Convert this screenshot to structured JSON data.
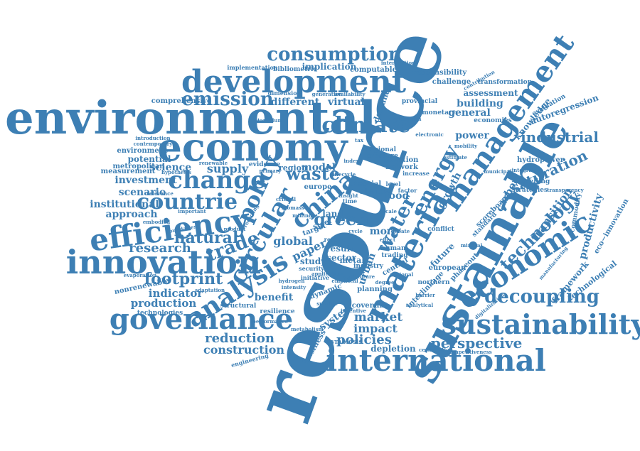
{
  "color": "#3d7fb4",
  "words": [
    {
      "id": "resource",
      "text": "resource"
    },
    {
      "id": "environmental",
      "text": "environmental"
    },
    {
      "id": "sustainable",
      "text": "sustainable"
    },
    {
      "id": "economy",
      "text": "economy"
    },
    {
      "id": "innovation",
      "text": "innovation"
    },
    {
      "id": "development",
      "text": "development"
    },
    {
      "id": "international",
      "text": "international"
    },
    {
      "id": "sustainability",
      "text": "sustainability"
    },
    {
      "id": "governance",
      "text": "governance"
    },
    {
      "id": "efficiency",
      "text": "efficiency"
    },
    {
      "id": "material",
      "text": "material"
    },
    {
      "id": "economic",
      "text": "economic"
    },
    {
      "id": "management",
      "text": "management"
    },
    {
      "id": "consumption",
      "text": "consumption"
    },
    {
      "id": "china",
      "text": "china"
    },
    {
      "id": "analysis",
      "text": "analysis"
    },
    {
      "id": "circular",
      "text": "circular"
    },
    {
      "id": "change",
      "text": "change"
    },
    {
      "id": "countrie",
      "text": "countrie"
    },
    {
      "id": "climate",
      "text": "climate"
    },
    {
      "id": "policy",
      "text": "policy"
    },
    {
      "id": "energy",
      "text": "energy"
    },
    {
      "id": "water",
      "text": "water"
    },
    {
      "id": "technology",
      "text": "technology"
    },
    {
      "id": "emission",
      "text": "emission"
    },
    {
      "id": "trade",
      "text": "trade"
    },
    {
      "id": "decoupling",
      "text": "decoupling"
    },
    {
      "id": "footprint",
      "text": "footprint"
    },
    {
      "id": "green",
      "text": "green"
    },
    {
      "id": "waste",
      "text": "waste"
    },
    {
      "id": "saturation",
      "text": "saturation"
    },
    {
      "id": "industrial",
      "text": "industrial"
    },
    {
      "id": "natural",
      "text": "natural"
    },
    {
      "id": "research",
      "text": "research"
    },
    {
      "id": "reduction",
      "text": "reduction"
    },
    {
      "id": "construction",
      "text": "construction"
    },
    {
      "id": "perspective",
      "text": "perspective"
    },
    {
      "id": "policies",
      "text": "policies"
    },
    {
      "id": "impact",
      "text": "impact"
    },
    {
      "id": "market",
      "text": "market"
    },
    {
      "id": "production",
      "text": "production"
    },
    {
      "id": "indicator",
      "text": "indicator"
    },
    {
      "id": "technologies",
      "text": "technologies"
    },
    {
      "id": "investment",
      "text": "investment"
    },
    {
      "id": "scenario",
      "text": "scenario"
    },
    {
      "id": "institutional",
      "text": "institutional"
    },
    {
      "id": "approach",
      "text": "approach"
    },
    {
      "id": "science",
      "text": "science"
    },
    {
      "id": "potential",
      "text": "potential"
    },
    {
      "id": "supply",
      "text": "supply"
    },
    {
      "id": "measurement",
      "text": "measurement"
    },
    {
      "id": "metropolitan",
      "text": "metropolitan"
    },
    {
      "id": "environment",
      "text": "environment"
    },
    {
      "id": "comprehensive",
      "text": "comprehensive"
    },
    {
      "id": "different",
      "text": "different"
    },
    {
      "id": "virtual",
      "text": "virtual"
    },
    {
      "id": "implication",
      "text": "implication"
    },
    {
      "id": "computable",
      "text": "computable"
    },
    {
      "id": "bibliometric",
      "text": "bibliometric"
    },
    {
      "id": "implementation",
      "text": "implementation"
    },
    {
      "id": "responsibility",
      "text": "responsibility"
    },
    {
      "id": "challenge",
      "text": "challenge"
    },
    {
      "id": "transformation",
      "text": "transformation"
    },
    {
      "id": "assessment",
      "text": "assessment"
    },
    {
      "id": "building",
      "text": "building"
    },
    {
      "id": "general",
      "text": "general"
    },
    {
      "id": "power",
      "text": "power"
    },
    {
      "id": "economies",
      "text": "economies"
    },
    {
      "id": "monetary",
      "text": "monetary"
    },
    {
      "id": "knowledge",
      "text": "knowledge"
    },
    {
      "id": "autoregression",
      "text": "autoregression"
    },
    {
      "id": "evaluation",
      "text": "evaluation"
    },
    {
      "id": "carbon",
      "text": "carbon"
    },
    {
      "id": "hydropower",
      "text": "hydropower"
    },
    {
      "id": "growth",
      "text": "growth"
    },
    {
      "id": "modelling",
      "text": "modelling"
    },
    {
      "id": "strategies",
      "text": "strategies"
    },
    {
      "id": "transition",
      "text": "transition"
    },
    {
      "id": "productivity",
      "text": "productivity"
    },
    {
      "id": "commodity",
      "text": "commodity"
    },
    {
      "id": "eco-innovation",
      "text": "eco−innovation"
    },
    {
      "id": "framework",
      "text": "framework"
    },
    {
      "id": "technological",
      "text": "technological"
    },
    {
      "id": "scoreboard",
      "text": "scoreboard"
    },
    {
      "id": "standard",
      "text": "standard"
    },
    {
      "id": "future",
      "text": "future"
    },
    {
      "id": "conflict",
      "text": "conflict"
    },
    {
      "id": "phaseout",
      "text": "phaseout"
    },
    {
      "id": "european",
      "text": "european"
    },
    {
      "id": "northern",
      "text": "northern"
    },
    {
      "id": "interlinkage",
      "text": "interlinkage"
    },
    {
      "id": "covenant",
      "text": "covenant"
    },
    {
      "id": "planning",
      "text": "planning"
    },
    {
      "id": "central",
      "text": "central"
    },
    {
      "id": "industry",
      "text": "industry"
    },
    {
      "id": "metal",
      "text": "metal"
    },
    {
      "id": "result",
      "text": "result"
    },
    {
      "id": "sector",
      "text": "sector"
    },
    {
      "id": "more",
      "text": "more"
    },
    {
      "id": "urban",
      "text": "urban"
    },
    {
      "id": "human",
      "text": "human"
    },
    {
      "id": "trading",
      "text": "trading"
    },
    {
      "id": "depletion",
      "text": "depletion"
    },
    {
      "id": "system",
      "text": "system"
    },
    {
      "id": "business",
      "text": "business"
    },
    {
      "id": "symbiosis",
      "text": "symbiosis"
    },
    {
      "id": "benefit",
      "text": "benefit"
    },
    {
      "id": "structural",
      "text": "structural"
    },
    {
      "id": "resilience",
      "text": "resilience"
    },
    {
      "id": "dynamic",
      "text": "dynamic"
    },
    {
      "id": "initiative",
      "text": "initiative"
    },
    {
      "id": "study",
      "text": "study"
    },
    {
      "id": "security",
      "text": "security"
    },
    {
      "id": "paper",
      "text": "paper"
    },
    {
      "id": "global",
      "text": "global"
    },
    {
      "id": "land",
      "text": "land"
    },
    {
      "id": "steel",
      "text": "steel"
    },
    {
      "id": "target",
      "text": "target"
    },
    {
      "id": "chain",
      "text": "chain"
    },
    {
      "id": "social",
      "text": "social"
    },
    {
      "id": "food",
      "text": "food"
    },
    {
      "id": "factor",
      "text": "factor"
    },
    {
      "id": "region",
      "text": "region"
    },
    {
      "id": "model",
      "text": "model"
    },
    {
      "id": "europe",
      "text": "europe"
    },
    {
      "id": "pollution",
      "text": "pollution"
    },
    {
      "id": "network",
      "text": "network"
    },
    {
      "id": "increase",
      "text": "increase"
    },
    {
      "id": "regional",
      "text": "regional"
    },
    {
      "id": "pressure",
      "text": "pressure"
    },
    {
      "id": "demand",
      "text": "demand"
    },
    {
      "id": "provincial",
      "text": "provincial"
    },
    {
      "id": "evidence",
      "text": "evidence"
    },
    {
      "id": "hypothesis",
      "text": "hypothesis"
    },
    {
      "id": "relevance",
      "text": "relevance"
    },
    {
      "id": "important",
      "text": "important"
    },
    {
      "id": "embodied",
      "text": "embodied"
    },
    {
      "id": "nonrenewable",
      "text": "nonrenewable"
    },
    {
      "id": "evaporation",
      "text": "evaporation"
    },
    {
      "id": "introduction",
      "text": "introduction"
    },
    {
      "id": "contemporary",
      "text": "contemporary"
    },
    {
      "id": "tantalum",
      "text": "tantalum"
    },
    {
      "id": "dimension",
      "text": "dimension"
    },
    {
      "id": "level",
      "text": "level"
    },
    {
      "id": "recent",
      "text": "recent"
    },
    {
      "id": "engineering",
      "text": "engineering"
    },
    {
      "id": "certification",
      "text": "certification"
    },
    {
      "id": "competitiveness",
      "text": "competitiveness"
    },
    {
      "id": "mobility",
      "text": "mobility"
    },
    {
      "id": "electronic",
      "text": "electronic"
    },
    {
      "id": "allocation",
      "text": "allocation"
    },
    {
      "id": "intervention",
      "text": "intervention"
    },
    {
      "id": "contribution",
      "text": "contribution"
    },
    {
      "id": "generation",
      "text": "generation"
    },
    {
      "id": "availability",
      "text": "availability"
    },
    {
      "id": "metabolism",
      "text": "metabolism"
    },
    {
      "id": "adaptation",
      "text": "adaptation"
    },
    {
      "id": "boundaries",
      "text": "boundaries"
    },
    {
      "id": "transparency",
      "text": "transparency"
    },
    {
      "id": "integrated",
      "text": "integrated"
    },
    {
      "id": "manufacturing",
      "text": "manufacturing"
    },
    {
      "id": "mineral",
      "text": "mineral"
    },
    {
      "id": "digitalization",
      "text": "digitalization"
    },
    {
      "id": "barrier",
      "text": "barrier"
    },
    {
      "id": "cost",
      "text": "cost"
    },
    {
      "id": "product",
      "text": "product"
    },
    {
      "id": "recycling",
      "text": "recycling"
    },
    {
      "id": "tax",
      "text": "tax"
    },
    {
      "id": "time",
      "text": "time"
    },
    {
      "id": "debate",
      "text": "debate"
    },
    {
      "id": "national",
      "text": "national"
    },
    {
      "id": "effect",
      "text": "effect"
    },
    {
      "id": "insight",
      "text": "insight"
    },
    {
      "id": "lifecycle",
      "text": "lifecycle"
    },
    {
      "id": "scale",
      "text": "scale"
    },
    {
      "id": "primary",
      "text": "primary"
    },
    {
      "id": "index",
      "text": "index"
    },
    {
      "id": "cycle",
      "text": "cycle"
    },
    {
      "id": "biomass",
      "text": "biomass"
    },
    {
      "id": "mining",
      "text": "mining"
    },
    {
      "id": "renewable",
      "text": "renewable"
    },
    {
      "id": "municipal",
      "text": "municipal"
    },
    {
      "id": "estimate",
      "text": "estimate"
    },
    {
      "id": "critical",
      "text": "critical"
    },
    {
      "id": "application",
      "text": "application"
    },
    {
      "id": "agriculture",
      "text": "agriculture"
    },
    {
      "id": "empirical",
      "text": "empirical"
    },
    {
      "id": "degree",
      "text": "degree"
    },
    {
      "id": "analytical",
      "text": "analytical"
    },
    {
      "id": "intensity",
      "text": "intensity"
    },
    {
      "id": "specific",
      "text": "specific"
    },
    {
      "id": "incentive",
      "text": "incentive"
    },
    {
      "id": "hydrogen",
      "text": "hydrogen"
    },
    {
      "id": "performance",
      "text": "performance"
    }
  ]
}
